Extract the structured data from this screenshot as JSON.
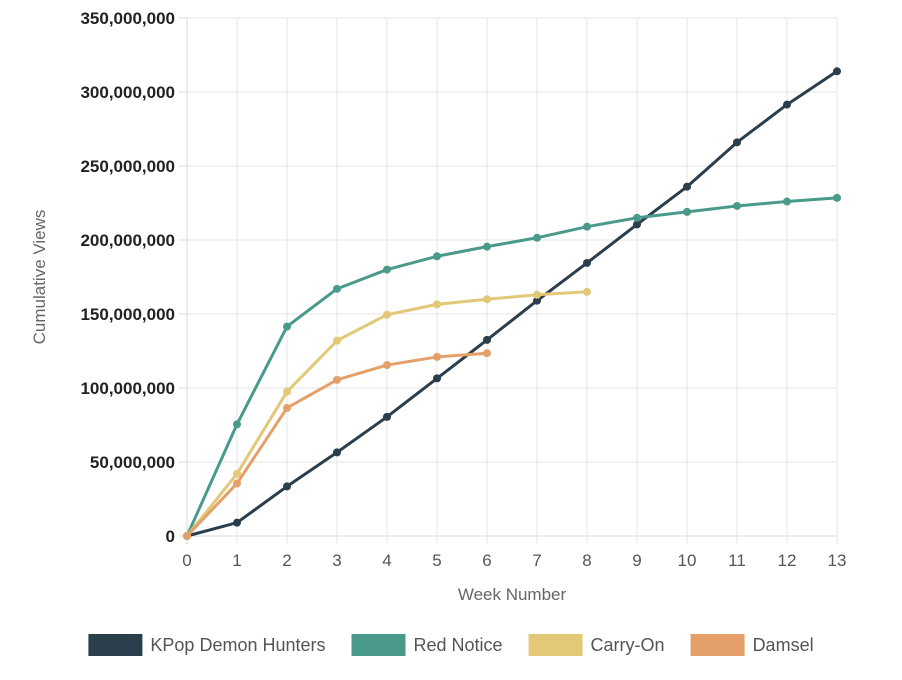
{
  "chart_data": {
    "type": "line",
    "xlabel": "Week Number",
    "ylabel": "Cumulative Views",
    "xlim": [
      0,
      13
    ],
    "ylim": [
      0,
      350000000
    ],
    "x_ticks": [
      "0",
      "1",
      "2",
      "3",
      "4",
      "5",
      "6",
      "7",
      "8",
      "9",
      "10",
      "11",
      "12",
      "13"
    ],
    "y_ticks": [
      "0",
      "50,000,000",
      "100,000,000",
      "150,000,000",
      "200,000,000",
      "250,000,000",
      "300,000,000",
      "350,000,000"
    ],
    "grid": true,
    "legend_position": "bottom",
    "series": [
      {
        "name": "KPop Demon Hunters",
        "color": "#2b3e4c",
        "x": [
          0,
          1,
          2,
          3,
          4,
          5,
          6,
          7,
          8,
          9,
          10,
          11,
          12,
          13
        ],
        "values": [
          0,
          9000000,
          33500000,
          56500000,
          80500000,
          106500000,
          132500000,
          159000000,
          184500000,
          210500000,
          236000000,
          266000000,
          291500000,
          314000000
        ]
      },
      {
        "name": "Red Notice",
        "color": "#4a9a8b",
        "x": [
          0,
          1,
          2,
          3,
          4,
          5,
          6,
          7,
          8,
          9,
          10,
          11,
          12,
          13
        ],
        "values": [
          0,
          75500000,
          141500000,
          167000000,
          180000000,
          189000000,
          195500000,
          201500000,
          209000000,
          215000000,
          219000000,
          223000000,
          226000000,
          228500000
        ]
      },
      {
        "name": "Carry-On",
        "color": "#e3c877",
        "x": [
          0,
          1,
          2,
          3,
          4,
          5,
          6,
          7,
          8
        ],
        "values": [
          0,
          42000000,
          97500000,
          132000000,
          149500000,
          156500000,
          160000000,
          163000000,
          165000000
        ]
      },
      {
        "name": "Damsel",
        "color": "#e5a06a",
        "x": [
          0,
          1,
          2,
          3,
          4,
          5,
          6
        ],
        "values": [
          0,
          35500000,
          86500000,
          105500000,
          115500000,
          121000000,
          123500000
        ]
      }
    ]
  }
}
